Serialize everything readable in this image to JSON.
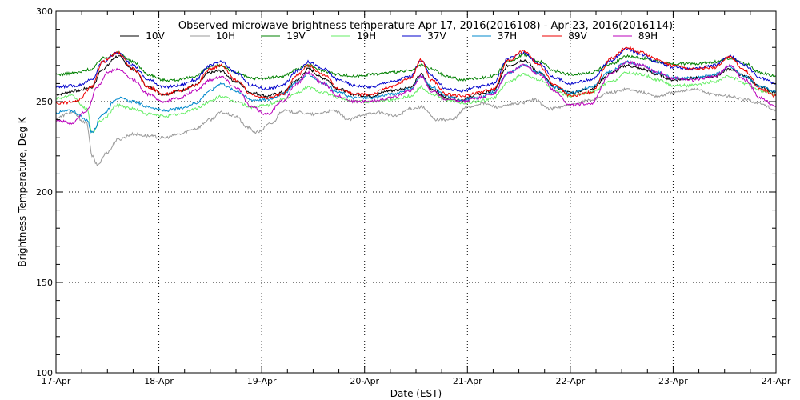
{
  "chart_data": {
    "type": "line",
    "title": "Observed microwave brightness temperature Apr 17, 2016(2016108) - Apr 23, 2016(2016114)",
    "xlabel": "Date (EST)",
    "ylabel": "Brightness Temperature, Deg K",
    "ylim": [
      100,
      300
    ],
    "xlim": [
      0,
      7
    ],
    "y_ticks": [
      100,
      150,
      200,
      250,
      300
    ],
    "x_ticks": [
      {
        "x": 0,
        "label": "17-Apr"
      },
      {
        "x": 1,
        "label": "18-Apr"
      },
      {
        "x": 2,
        "label": "19-Apr"
      },
      {
        "x": 3,
        "label": "20-Apr"
      },
      {
        "x": 4,
        "label": "21-Apr"
      },
      {
        "x": 5,
        "label": "22-Apr"
      },
      {
        "x": 6,
        "label": "23-Apr"
      },
      {
        "x": 7,
        "label": "24-Apr"
      }
    ],
    "grid": true,
    "legend_placement": "top",
    "x_unit": "days since 17-Apr",
    "series": [
      {
        "name": "10V",
        "color": "#000000",
        "x": [
          0,
          0.2,
          0.35,
          0.45,
          0.6,
          0.75,
          0.9,
          1.05,
          1.2,
          1.35,
          1.5,
          1.6,
          1.75,
          1.9,
          2.05,
          2.2,
          2.35,
          2.45,
          2.6,
          2.75,
          2.9,
          3.05,
          3.25,
          3.45,
          3.55,
          3.65,
          3.8,
          3.95,
          4.1,
          4.25,
          4.4,
          4.55,
          4.7,
          4.85,
          5.0,
          5.2,
          5.4,
          5.55,
          5.7,
          5.85,
          6.0,
          6.2,
          6.4,
          6.55,
          6.7,
          6.85,
          7.0
        ],
        "y": [
          254,
          256,
          258,
          268,
          275,
          268,
          258,
          254,
          256,
          259,
          266,
          267,
          261,
          255,
          253,
          255,
          262,
          268,
          263,
          257,
          254,
          253,
          256,
          258,
          265,
          257,
          252,
          251,
          254,
          256,
          270,
          273,
          266,
          258,
          255,
          257,
          266,
          270,
          268,
          265,
          262,
          263,
          264,
          268,
          264,
          258,
          255
        ]
      },
      {
        "name": "10H",
        "color": "#999999",
        "x": [
          0,
          0.15,
          0.3,
          0.35,
          0.4,
          0.5,
          0.6,
          0.75,
          0.9,
          1.05,
          1.2,
          1.35,
          1.5,
          1.6,
          1.75,
          1.85,
          1.95,
          2.1,
          2.2,
          2.35,
          2.5,
          2.7,
          2.85,
          3.0,
          3.15,
          3.3,
          3.45,
          3.55,
          3.7,
          3.85,
          4.0,
          4.15,
          4.3,
          4.5,
          4.65,
          4.8,
          5.0,
          5.2,
          5.4,
          5.55,
          5.7,
          5.85,
          6.0,
          6.2,
          6.4,
          6.55,
          6.7,
          6.85,
          7.0
        ],
        "y": [
          241,
          244,
          238,
          220,
          215,
          222,
          229,
          232,
          231,
          230,
          232,
          235,
          240,
          244,
          242,
          236,
          233,
          238,
          245,
          244,
          243,
          245,
          240,
          243,
          244,
          242,
          246,
          247,
          240,
          240,
          247,
          249,
          247,
          249,
          251,
          246,
          248,
          251,
          255,
          257,
          255,
          253,
          255,
          257,
          254,
          253,
          251,
          249,
          245
        ]
      },
      {
        "name": "19V",
        "color": "#008000",
        "x": [
          0,
          0.2,
          0.35,
          0.45,
          0.6,
          0.75,
          0.9,
          1.05,
          1.2,
          1.35,
          1.5,
          1.6,
          1.75,
          1.9,
          2.05,
          2.2,
          2.35,
          2.45,
          2.6,
          2.75,
          2.9,
          3.05,
          3.25,
          3.45,
          3.55,
          3.65,
          3.8,
          3.95,
          4.1,
          4.25,
          4.4,
          4.55,
          4.7,
          4.85,
          5.0,
          5.2,
          5.4,
          5.55,
          5.7,
          5.85,
          6.0,
          6.2,
          6.4,
          6.55,
          6.7,
          6.85,
          7.0
        ],
        "y": [
          265,
          266,
          268,
          274,
          277,
          272,
          265,
          262,
          262,
          264,
          269,
          270,
          266,
          263,
          263,
          264,
          268,
          270,
          267,
          265,
          264,
          265,
          266,
          267,
          270,
          268,
          264,
          262,
          263,
          264,
          272,
          276,
          272,
          267,
          265,
          266,
          271,
          275,
          274,
          272,
          271,
          271,
          272,
          274,
          271,
          266,
          264
        ]
      },
      {
        "name": "19H",
        "color": "#66ee66",
        "x": [
          0,
          0.15,
          0.3,
          0.35,
          0.45,
          0.6,
          0.75,
          0.9,
          1.05,
          1.2,
          1.35,
          1.5,
          1.6,
          1.75,
          1.9,
          2.05,
          2.2,
          2.35,
          2.45,
          2.6,
          2.75,
          2.9,
          3.05,
          3.25,
          3.45,
          3.55,
          3.65,
          3.8,
          3.95,
          4.1,
          4.25,
          4.4,
          4.55,
          4.7,
          4.85,
          5.0,
          5.2,
          5.4,
          5.55,
          5.7,
          5.85,
          6.0,
          6.2,
          6.4,
          6.55,
          6.7,
          6.85,
          7.0
        ],
        "y": [
          252,
          253,
          246,
          233,
          240,
          248,
          246,
          243,
          242,
          243,
          246,
          250,
          253,
          250,
          247,
          248,
          251,
          255,
          258,
          255,
          252,
          250,
          250,
          251,
          253,
          258,
          254,
          251,
          249,
          250,
          252,
          261,
          265,
          262,
          256,
          253,
          255,
          261,
          266,
          265,
          262,
          259,
          259,
          261,
          264,
          260,
          256,
          254
        ]
      },
      {
        "name": "37V",
        "color": "#0000cc",
        "x": [
          0,
          0.2,
          0.35,
          0.45,
          0.6,
          0.75,
          0.9,
          1.05,
          1.2,
          1.35,
          1.5,
          1.6,
          1.75,
          1.9,
          2.05,
          2.2,
          2.35,
          2.45,
          2.6,
          2.75,
          2.9,
          3.05,
          3.25,
          3.45,
          3.55,
          3.65,
          3.8,
          3.95,
          4.1,
          4.25,
          4.4,
          4.55,
          4.7,
          4.85,
          5.0,
          5.2,
          5.4,
          5.55,
          5.7,
          5.85,
          6.0,
          6.2,
          6.4,
          6.55,
          6.7,
          6.85,
          7.0
        ],
        "y": [
          258,
          259,
          262,
          272,
          277,
          270,
          262,
          258,
          259,
          262,
          270,
          272,
          266,
          259,
          257,
          259,
          267,
          272,
          268,
          262,
          259,
          258,
          261,
          264,
          273,
          264,
          257,
          256,
          258,
          260,
          274,
          277,
          271,
          263,
          260,
          262,
          273,
          279,
          276,
          272,
          269,
          268,
          270,
          275,
          270,
          263,
          260
        ]
      },
      {
        "name": "37H",
        "color": "#0088cc",
        "x": [
          0,
          0.15,
          0.3,
          0.35,
          0.45,
          0.6,
          0.75,
          0.9,
          1.05,
          1.2,
          1.35,
          1.5,
          1.6,
          1.75,
          1.9,
          2.05,
          2.2,
          2.35,
          2.45,
          2.6,
          2.75,
          2.9,
          3.05,
          3.25,
          3.45,
          3.55,
          3.65,
          3.8,
          3.95,
          4.1,
          4.25,
          4.4,
          4.55,
          4.7,
          4.85,
          5.0,
          5.2,
          5.4,
          5.55,
          5.7,
          5.85,
          6.0,
          6.2,
          6.4,
          6.55,
          6.7,
          6.85,
          7.0
        ],
        "y": [
          244,
          245,
          240,
          233,
          243,
          252,
          250,
          247,
          245,
          246,
          249,
          256,
          260,
          256,
          251,
          251,
          254,
          261,
          265,
          260,
          255,
          252,
          252,
          254,
          257,
          264,
          258,
          253,
          251,
          252,
          255,
          266,
          270,
          266,
          258,
          255,
          258,
          267,
          272,
          270,
          266,
          263,
          263,
          265,
          269,
          264,
          258,
          256
        ]
      },
      {
        "name": "89V",
        "color": "#ee0000",
        "x": [
          0,
          0.2,
          0.35,
          0.45,
          0.6,
          0.75,
          0.9,
          1.05,
          1.2,
          1.35,
          1.5,
          1.6,
          1.75,
          1.9,
          2.05,
          2.2,
          2.35,
          2.45,
          2.6,
          2.75,
          2.9,
          3.05,
          3.25,
          3.45,
          3.55,
          3.65,
          3.8,
          3.95,
          4.1,
          4.25,
          4.4,
          4.55,
          4.7,
          4.85,
          5.0,
          5.2,
          5.4,
          5.55,
          5.7,
          5.85,
          6.0,
          6.2,
          6.4,
          6.55,
          6.7,
          6.85,
          7.0
        ],
        "y": [
          249,
          250,
          258,
          272,
          277,
          268,
          258,
          254,
          256,
          259,
          268,
          270,
          262,
          254,
          252,
          254,
          265,
          270,
          265,
          257,
          254,
          254,
          258,
          263,
          273,
          262,
          254,
          253,
          255,
          257,
          273,
          278,
          270,
          259,
          253,
          255,
          274,
          280,
          277,
          273,
          270,
          268,
          269,
          275,
          267,
          257,
          253
        ]
      },
      {
        "name": "89H",
        "color": "#bb00bb",
        "x": [
          0,
          0.15,
          0.3,
          0.4,
          0.5,
          0.6,
          0.75,
          0.9,
          1.05,
          1.2,
          1.35,
          1.5,
          1.6,
          1.75,
          1.9,
          2.05,
          2.2,
          2.35,
          2.45,
          2.6,
          2.75,
          2.9,
          3.05,
          3.25,
          3.45,
          3.55,
          3.65,
          3.8,
          3.95,
          4.1,
          4.25,
          4.4,
          4.55,
          4.7,
          4.85,
          5.0,
          5.2,
          5.4,
          5.55,
          5.7,
          5.85,
          6.0,
          6.2,
          6.4,
          6.55,
          6.7,
          6.85,
          7.0
        ],
        "y": [
          240,
          238,
          245,
          258,
          266,
          268,
          262,
          254,
          250,
          252,
          256,
          262,
          264,
          258,
          247,
          243,
          250,
          260,
          266,
          260,
          253,
          250,
          250,
          252,
          256,
          264,
          256,
          251,
          250,
          252,
          254,
          266,
          270,
          265,
          256,
          248,
          249,
          266,
          272,
          270,
          266,
          263,
          262,
          264,
          270,
          262,
          252,
          247
        ]
      }
    ]
  }
}
